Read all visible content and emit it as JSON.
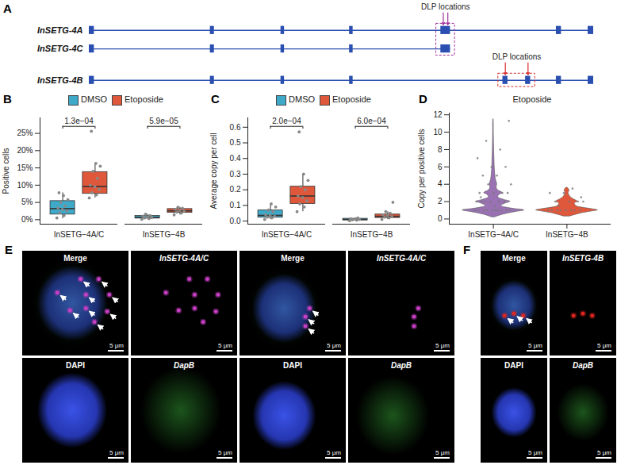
{
  "diagram": {
    "panel": "A",
    "transcripts": [
      {
        "name": "InSETG-4A",
        "start": 0,
        "end": 100,
        "exons": [
          [
            0,
            1
          ],
          [
            24,
            24.8
          ],
          [
            38,
            38.7
          ],
          [
            51.6,
            52.3
          ],
          [
            69.7,
            71.6
          ],
          [
            92.6,
            93.6
          ],
          [
            98.9,
            100
          ]
        ]
      },
      {
        "name": "InSETG-4C",
        "start": 0,
        "end": 71.6,
        "exons": [
          [
            0,
            1
          ],
          [
            24,
            24.8
          ],
          [
            38,
            38.7
          ],
          [
            51.6,
            52.3
          ],
          [
            69.7,
            71.6
          ]
        ]
      },
      {
        "name": "InSETG-4B",
        "start": 0,
        "end": 100,
        "exons": [
          [
            0,
            1
          ],
          [
            24,
            24.8
          ],
          [
            38,
            38.7
          ],
          [
            51.6,
            52.3
          ],
          [
            82,
            83
          ],
          [
            86.5,
            87.5
          ],
          [
            92.6,
            93.6
          ],
          [
            98.9,
            100
          ]
        ]
      }
    ],
    "dlp": [
      {
        "label": "DLP locations",
        "transcripts": [
          "InSETG-4A",
          "InSETG-4C"
        ],
        "positions": [
          70.2,
          71.1
        ],
        "color": "#a0329b"
      },
      {
        "label": "DLP locations",
        "transcripts": [
          "InSETG-4B"
        ],
        "positions": [
          82.5,
          87
        ],
        "color": "#d62c2c"
      }
    ]
  },
  "chart_data": [
    {
      "panel": "B",
      "type": "box",
      "ylabel": "Positive cells",
      "categories": [
        "InSETG−4A/C",
        "InSETG−4B"
      ],
      "series": [
        {
          "name": "DMSO",
          "color": "#3fa9c9",
          "boxes": [
            {
              "low": 0.3,
              "q1": 1.5,
              "median": 3.2,
              "q3": 5.4,
              "high": 7.8
            },
            {
              "low": 0.1,
              "q1": 0.35,
              "median": 0.7,
              "q3": 1.1,
              "high": 1.6
            }
          ],
          "points": [
            [
              0.5,
              1.2,
              2,
              2.6,
              3,
              3.4,
              4,
              5,
              5.8,
              7,
              7.8
            ],
            [
              0.1,
              0.3,
              0.5,
              0.6,
              0.8,
              1,
              1.2,
              1.6
            ]
          ]
        },
        {
          "name": "Etoposide",
          "color": "#e0583c",
          "boxes": [
            {
              "low": 6.3,
              "q1": 7.5,
              "median": 9.6,
              "q3": 13.8,
              "high": 16.3
            },
            {
              "low": 1.4,
              "q1": 2,
              "median": 2.55,
              "q3": 3.1,
              "high": 3.6
            }
          ],
          "points": [
            [
              6.3,
              7.2,
              7.8,
              8.8,
              9.5,
              10,
              12,
              14,
              15.5,
              16.3,
              25.6
            ],
            [
              1.4,
              1.9,
              2.2,
              2.5,
              2.7,
              3,
              3.3,
              3.6
            ]
          ]
        }
      ],
      "p_values": [
        "1.3e−04",
        "5.9e−05"
      ],
      "ylim": [
        -1.3,
        29.5
      ],
      "yticks": [
        {
          "value": 0,
          "label": "0%"
        },
        {
          "value": 5,
          "label": "5%"
        },
        {
          "value": 10,
          "label": "10%"
        },
        {
          "value": 15,
          "label": "15%"
        },
        {
          "value": 20,
          "label": "20%"
        },
        {
          "value": 25,
          "label": "25%"
        }
      ],
      "legend": "top"
    },
    {
      "panel": "C",
      "type": "box",
      "ylabel": "Average copy per cell",
      "categories": [
        "InSETG−4A/C",
        "InSETG−4B"
      ],
      "series": [
        {
          "name": "DMSO",
          "color": "#3fa9c9",
          "boxes": [
            {
              "low": 0.01,
              "q1": 0.022,
              "median": 0.036,
              "q3": 0.068,
              "high": 0.11
            },
            {
              "low": 0.002,
              "q1": 0.005,
              "median": 0.01,
              "q3": 0.015,
              "high": 0.02
            }
          ],
          "points": [
            [
              0.01,
              0.02,
              0.025,
              0.03,
              0.035,
              0.04,
              0.06,
              0.07,
              0.09,
              0.11
            ],
            [
              0.002,
              0.005,
              0.008,
              0.01,
              0.012,
              0.015,
              0.02
            ]
          ]
        },
        {
          "name": "Etoposide",
          "color": "#e0583c",
          "boxes": [
            {
              "low": 0.06,
              "q1": 0.11,
              "median": 0.16,
              "q3": 0.22,
              "high": 0.3
            },
            {
              "low": 0.01,
              "q1": 0.02,
              "median": 0.03,
              "q3": 0.042,
              "high": 0.06
            }
          ],
          "points": [
            [
              0.06,
              0.09,
              0.11,
              0.13,
              0.15,
              0.16,
              0.2,
              0.22,
              0.26,
              0.3,
              0.57
            ],
            [
              0.01,
              0.02,
              0.025,
              0.03,
              0.035,
              0.04,
              0.05,
              0.06,
              0.12
            ]
          ]
        }
      ],
      "p_values": [
        "2.0e−04",
        "6.0e−04"
      ],
      "ylim": [
        -0.02,
        0.66
      ],
      "yticks": [
        {
          "value": 0,
          "label": "0.0"
        },
        0.1,
        0.2,
        0.3,
        0.4,
        0.5,
        0.6
      ],
      "legend": "top"
    },
    {
      "panel": "D",
      "type": "violin",
      "title": "Etoposide",
      "ylabel": "Copy per positive cells",
      "categories": [
        "InSETG−4A/C",
        "InSETG−4B"
      ],
      "violins": [
        {
          "color": "#9a72b4",
          "density_y": [
            0.2,
            0.5,
            0.8,
            1,
            1.2,
            1.5,
            1.8,
            2,
            2.2,
            2.5,
            2.8,
            3,
            3.3,
            3.6,
            4,
            4.5,
            5,
            6,
            7,
            8,
            9,
            10,
            11,
            11.5
          ],
          "density": [
            0.05,
            0.3,
            0.7,
            1,
            0.6,
            0.25,
            0.4,
            0.55,
            0.35,
            0.15,
            0.2,
            0.3,
            0.15,
            0.1,
            0.12,
            0.08,
            0.06,
            0.04,
            0.03,
            0.02,
            0.015,
            0.01,
            0.01,
            0.005
          ],
          "points": [
            1,
            1,
            1,
            1,
            1,
            1,
            1,
            1,
            1,
            1,
            2,
            2,
            2,
            2,
            2,
            2,
            3,
            3,
            3,
            3,
            4,
            4,
            5,
            5,
            6,
            6,
            7,
            8,
            9,
            11.3,
            1.5,
            2.5
          ]
        },
        {
          "color": "#e0583c",
          "density_y": [
            0.3,
            0.6,
            0.9,
            1,
            1.2,
            1.5,
            1.8,
            2,
            2.3,
            2.6,
            3,
            3.3,
            3.6
          ],
          "density": [
            0.1,
            0.4,
            0.85,
            1,
            0.7,
            0.3,
            0.25,
            0.35,
            0.2,
            0.1,
            0.05,
            0.08,
            0.02
          ],
          "points": [
            1,
            1,
            1,
            1,
            1,
            1,
            1,
            1,
            2,
            2,
            2,
            2,
            3,
            3,
            3.5,
            1.5,
            2.5
          ]
        }
      ],
      "ylim": [
        -0.6,
        12.2
      ],
      "yticks": [
        0,
        2,
        4,
        6,
        8,
        10,
        12
      ]
    }
  ],
  "images": [
    {
      "panel": "E",
      "cells": [
        "Merge",
        "InSETG-4A/C",
        "DAPI",
        "DapB"
      ],
      "scale_label": "5 μm",
      "nucleus": [
        0.47,
        0.5,
        0.33,
        0.36
      ],
      "spot_color": "#c93fc6",
      "spots": [
        [
          0.55,
          0.27
        ],
        [
          0.72,
          0.27
        ],
        [
          0.33,
          0.4
        ],
        [
          0.6,
          0.42
        ],
        [
          0.82,
          0.42
        ],
        [
          0.45,
          0.57
        ],
        [
          0.6,
          0.55
        ],
        [
          0.68,
          0.68
        ],
        [
          0.8,
          0.58
        ]
      ]
    },
    {
      "cells": [
        "Merge",
        "InSETG-4A/C",
        "DAPI",
        "DapB"
      ],
      "scale_label": "5 μm",
      "nucleus": [
        0.42,
        0.55,
        0.3,
        0.33
      ],
      "spot_color": "#c93fc6",
      "spots": [
        [
          0.66,
          0.55
        ],
        [
          0.62,
          0.63
        ],
        [
          0.62,
          0.72
        ]
      ]
    },
    {
      "panel": "F",
      "cells": [
        "Merge",
        "InSETG-4B",
        "DAPI",
        "DapB"
      ],
      "scale_label": "5 μm",
      "nucleus": [
        0.5,
        0.52,
        0.34,
        0.24
      ],
      "spot_color": "#e0261f",
      "spots": [
        [
          0.36,
          0.62
        ],
        [
          0.5,
          0.6
        ],
        [
          0.64,
          0.62
        ]
      ]
    }
  ]
}
